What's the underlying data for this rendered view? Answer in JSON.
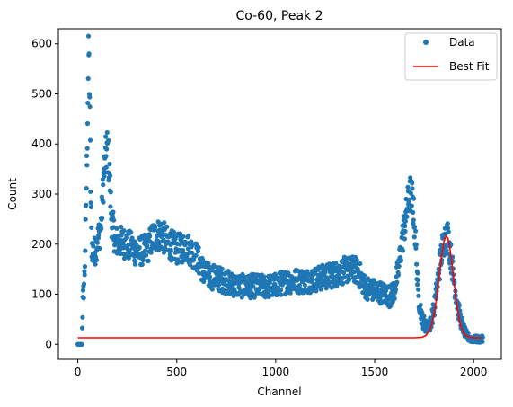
{
  "chart_data": {
    "type": "scatter",
    "title": "Co-60, Peak 2",
    "xlabel": "Channel",
    "ylabel": "Count",
    "xlim": [
      -98,
      2140
    ],
    "ylim": [
      -30,
      630
    ],
    "xticks": [
      0,
      500,
      1000,
      1500,
      2000
    ],
    "yticks": [
      0,
      100,
      200,
      300,
      400,
      500,
      600
    ],
    "grid": false,
    "legend_position": "top-right",
    "colors": {
      "data": "#1f77b4",
      "fit": "#ff0000",
      "axis": "#000000"
    },
    "series": [
      {
        "name": "Data",
        "kind": "scatter",
        "color": "#1f77b4",
        "envelope": [
          [
            0,
            0
          ],
          [
            20,
            0
          ],
          [
            25,
            80
          ],
          [
            30,
            110
          ],
          [
            35,
            150
          ],
          [
            40,
            240
          ],
          [
            45,
            350
          ],
          [
            50,
            470
          ],
          [
            55,
            590
          ],
          [
            60,
            500
          ],
          [
            65,
            300
          ],
          [
            70,
            200
          ],
          [
            80,
            180
          ],
          [
            90,
            190
          ],
          [
            100,
            210
          ],
          [
            110,
            220
          ],
          [
            120,
            250
          ],
          [
            130,
            330
          ],
          [
            140,
            370
          ],
          [
            150,
            395
          ],
          [
            160,
            340
          ],
          [
            170,
            250
          ],
          [
            190,
            205
          ],
          [
            220,
            205
          ],
          [
            250,
            200
          ],
          [
            300,
            185
          ],
          [
            350,
            190
          ],
          [
            380,
            215
          ],
          [
            420,
            220
          ],
          [
            450,
            205
          ],
          [
            500,
            190
          ],
          [
            550,
            195
          ],
          [
            600,
            175
          ],
          [
            620,
            160
          ],
          [
            640,
            140
          ],
          [
            680,
            135
          ],
          [
            720,
            130
          ],
          [
            780,
            120
          ],
          [
            850,
            115
          ],
          [
            900,
            117
          ],
          [
            950,
            115
          ],
          [
            1000,
            118
          ],
          [
            1050,
            125
          ],
          [
            1100,
            127
          ],
          [
            1150,
            126
          ],
          [
            1200,
            130
          ],
          [
            1250,
            135
          ],
          [
            1300,
            140
          ],
          [
            1350,
            148
          ],
          [
            1400,
            150
          ],
          [
            1430,
            135
          ],
          [
            1450,
            115
          ],
          [
            1480,
            110
          ],
          [
            1520,
            105
          ],
          [
            1560,
            100
          ],
          [
            1580,
            95
          ],
          [
            1600,
            110
          ],
          [
            1620,
            150
          ],
          [
            1640,
            210
          ],
          [
            1660,
            260
          ],
          [
            1670,
            285
          ],
          [
            1680,
            300
          ],
          [
            1690,
            290
          ],
          [
            1700,
            250
          ],
          [
            1710,
            180
          ],
          [
            1720,
            100
          ],
          [
            1740,
            50
          ],
          [
            1760,
            35
          ],
          [
            1780,
            40
          ],
          [
            1800,
            70
          ],
          [
            1820,
            130
          ],
          [
            1840,
            190
          ],
          [
            1860,
            220
          ],
          [
            1870,
            215
          ],
          [
            1880,
            190
          ],
          [
            1900,
            130
          ],
          [
            1920,
            75
          ],
          [
            1940,
            40
          ],
          [
            1960,
            20
          ],
          [
            1980,
            12
          ],
          [
            2000,
            10
          ],
          [
            2020,
            10
          ],
          [
            2040,
            10
          ]
        ]
      },
      {
        "name": "Best Fit",
        "kind": "line",
        "color": "#ff0000",
        "points": [
          [
            0,
            13
          ],
          [
            1700,
            13
          ],
          [
            1740,
            14
          ],
          [
            1760,
            18
          ],
          [
            1780,
            30
          ],
          [
            1790,
            42
          ],
          [
            1800,
            60
          ],
          [
            1810,
            85
          ],
          [
            1820,
            115
          ],
          [
            1830,
            148
          ],
          [
            1840,
            180
          ],
          [
            1850,
            205
          ],
          [
            1860,
            216
          ],
          [
            1870,
            212
          ],
          [
            1880,
            193
          ],
          [
            1890,
            163
          ],
          [
            1900,
            128
          ],
          [
            1910,
            95
          ],
          [
            1920,
            67
          ],
          [
            1930,
            46
          ],
          [
            1940,
            32
          ],
          [
            1950,
            23
          ],
          [
            1960,
            18
          ],
          [
            1980,
            14
          ],
          [
            2000,
            13
          ],
          [
            2040,
            13
          ]
        ]
      }
    ]
  }
}
